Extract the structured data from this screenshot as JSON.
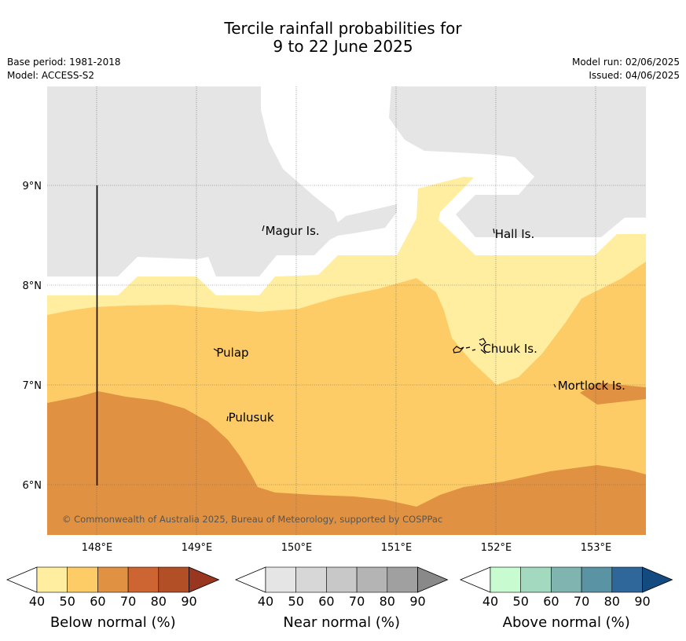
{
  "title_line1": "Tercile rainfall probabilities for",
  "title_line2": "9 to 22 June 2025",
  "base_period": "Base period: 1981-2018",
  "model": "Model: ACCESS-S2",
  "model_run": "Model run: 02/06/2025",
  "issued": "Issued: 04/06/2025",
  "copyright": "© Commonwealth of Australia 2025, Bureau of Meteorology, supported by COSPPac",
  "map": {
    "lon_ticks": [
      "148°E",
      "149°E",
      "150°E",
      "151°E",
      "152°E",
      "153°E"
    ],
    "lat_ticks": [
      "9°N",
      "8°N",
      "7°N",
      "6°N"
    ],
    "places": [
      {
        "name": "Magur Is.",
        "lon": 149.67,
        "lat": 8.55
      },
      {
        "name": "Hall Is.",
        "lon": 151.97,
        "lat": 8.52
      },
      {
        "name": "Pulap",
        "lon": 149.18,
        "lat": 7.33
      },
      {
        "name": "Chuuk Is.",
        "lon": 151.85,
        "lat": 7.37
      },
      {
        "name": "Mortlock Is.",
        "lon": 152.6,
        "lat": 7.0
      },
      {
        "name": "Pulusuk",
        "lon": 149.3,
        "lat": 6.68
      }
    ],
    "colors": {
      "below_40_50": "#ffeda0",
      "below_50_60": "#fecc66",
      "below_60_70": "#e09242",
      "near_40_50": "#e5e5e5"
    }
  },
  "colorbars": [
    {
      "title": "Below normal (%)",
      "ticks": [
        "40",
        "50",
        "60",
        "70",
        "80",
        "90"
      ],
      "colors": [
        "#ffeda0",
        "#fecc66",
        "#e09242",
        "#cd6533",
        "#b24f27",
        "#98361f"
      ]
    },
    {
      "title": "Near normal (%)",
      "ticks": [
        "40",
        "50",
        "60",
        "70",
        "80",
        "90"
      ],
      "colors": [
        "#e5e5e5",
        "#d7d7d7",
        "#c8c8c8",
        "#b4b4b4",
        "#a0a0a0",
        "#898989"
      ]
    },
    {
      "title": "Above normal (%)",
      "ticks": [
        "40",
        "50",
        "60",
        "70",
        "80",
        "90"
      ],
      "colors": [
        "#c8fbd0",
        "#a3d9be",
        "#7fb4b1",
        "#5a94a4",
        "#2f679a",
        "#134b80"
      ]
    }
  ]
}
